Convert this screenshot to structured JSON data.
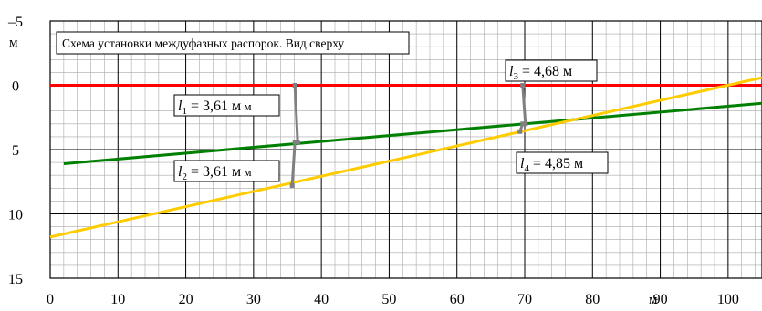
{
  "chart_data": {
    "type": "line",
    "title": "Схема установки междуфазных распорок. Вид сверху",
    "x_unit": "м",
    "y_unit": "м",
    "xlim": [
      0,
      105
    ],
    "ylim": [
      -5,
      15
    ],
    "y_inverted": true,
    "x_ticks": [
      "0",
      "10",
      "20",
      "30",
      "40",
      "50",
      "60",
      "70",
      "80",
      "90",
      "100"
    ],
    "y_ticks": [
      "–5",
      "0",
      "5",
      "10",
      "15"
    ],
    "grid": true,
    "series": [
      {
        "color": "#ff0000",
        "points": [
          [
            0,
            0
          ],
          [
            105,
            0
          ]
        ]
      },
      {
        "color": "#008000",
        "points": [
          [
            2,
            6.1
          ],
          [
            105,
            1.4
          ]
        ]
      },
      {
        "color": "#ffcc00",
        "points": [
          [
            0,
            11.8
          ],
          [
            105,
            -0.6
          ]
        ]
      }
    ],
    "spacers": [
      {
        "x": 36.1,
        "y1": 0,
        "y2": 4.4,
        "label_var": "l",
        "label_sub": "1",
        "label_text": " = 3,61 м",
        "label_unit": "м"
      },
      {
        "x": 36.1,
        "y1": 4.4,
        "y2": 7.8,
        "label_var": "l",
        "label_sub": "2",
        "label_text": " = 3,61 м",
        "label_unit": "м"
      },
      {
        "x": 69.7,
        "y1": 0,
        "y2": 3.0,
        "label_var": "l",
        "label_sub": "3",
        "label_text": " = 4,68 м",
        "label_unit": ""
      },
      {
        "x": 69.7,
        "y1": 3.0,
        "y2": 3.6,
        "label_var": "l",
        "label_sub": "4",
        "label_text": " = 4,85 м",
        "label_unit": ""
      }
    ]
  }
}
